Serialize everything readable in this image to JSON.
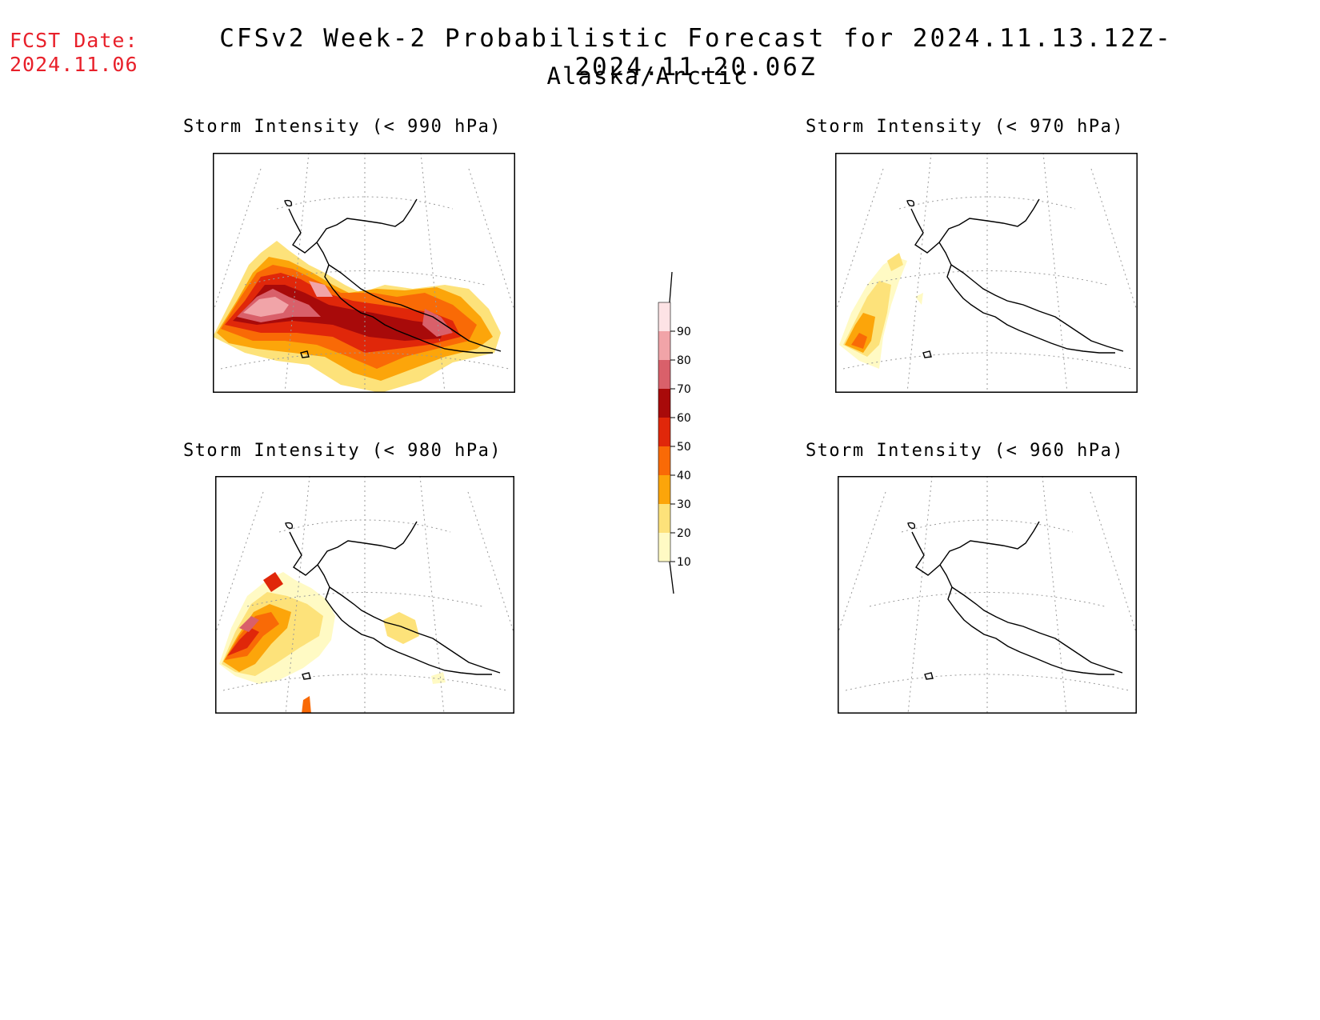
{
  "header": {
    "fcst_label": "FCST Date:",
    "fcst_date": "2024.11.06",
    "title": "CFSv2 Week-2 Probabilistic Forecast for 2024.11.13.12Z-2024.11.20.06Z",
    "subtitle": "Alaska/Arctic"
  },
  "panels": [
    {
      "title": "Storm Intensity (< 990 hPa)",
      "coverage": "extensive"
    },
    {
      "title": "Storm Intensity (< 970 hPa)",
      "coverage": "small"
    },
    {
      "title": "Storm Intensity (< 980 hPa)",
      "coverage": "moderate"
    },
    {
      "title": "Storm Intensity (< 960 hPa)",
      "coverage": "none"
    }
  ],
  "colorbar": {
    "levels": [
      "10",
      "20",
      "30",
      "40",
      "50",
      "60",
      "70",
      "80",
      "90"
    ],
    "colors": [
      "#fffac4",
      "#fde27a",
      "#fca50a",
      "#f96a06",
      "#e0270a",
      "#a80a0a",
      "#d9606a",
      "#f1a4a8",
      "#fde3e5"
    ]
  },
  "colors": {
    "fcst_date": "#e8202a"
  }
}
